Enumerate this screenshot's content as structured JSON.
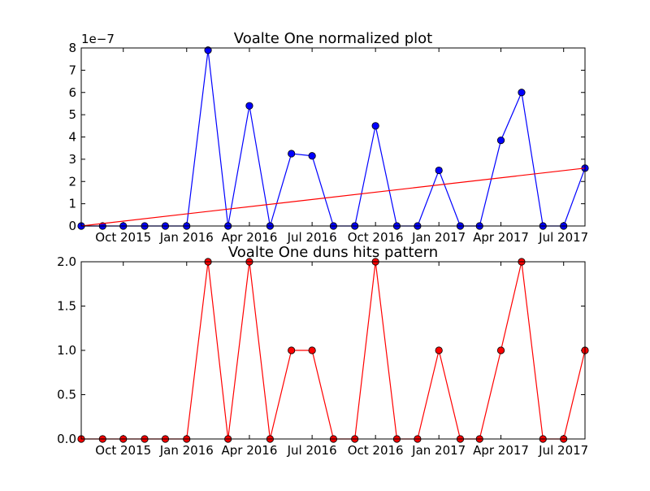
{
  "chart_data": [
    {
      "type": "line",
      "title": "Voalte One normalized plot",
      "xlabel": "",
      "ylabel": "",
      "y_offset_label": "1e−7",
      "y_scale": 1e-07,
      "ylim": [
        0,
        8
      ],
      "yticks": [
        "0",
        "1",
        "2",
        "3",
        "4",
        "5",
        "6",
        "7",
        "8"
      ],
      "xlim": [
        "2015-08-01",
        "2017-08-01"
      ],
      "xticks": [
        {
          "date": "2015-10-01",
          "label": "Oct 2015"
        },
        {
          "date": "2016-01-01",
          "label": "Jan 2016"
        },
        {
          "date": "2016-04-01",
          "label": "Apr 2016"
        },
        {
          "date": "2016-07-01",
          "label": "Jul 2016"
        },
        {
          "date": "2016-10-01",
          "label": "Oct 2016"
        },
        {
          "date": "2017-01-01",
          "label": "Jan 2017"
        },
        {
          "date": "2017-04-01",
          "label": "Apr 2017"
        },
        {
          "date": "2017-07-01",
          "label": "Jul 2017"
        }
      ],
      "series": [
        {
          "kind": "line-markers",
          "color": "#0000ff",
          "marker_color": "#0000ff",
          "x": [
            "2015-08-01",
            "2015-09-01",
            "2015-10-01",
            "2015-11-01",
            "2015-12-01",
            "2016-01-01",
            "2016-02-01",
            "2016-03-01",
            "2016-04-01",
            "2016-05-01",
            "2016-06-01",
            "2016-07-01",
            "2016-08-01",
            "2016-09-01",
            "2016-10-01",
            "2016-11-01",
            "2016-12-01",
            "2017-01-01",
            "2017-02-01",
            "2017-03-01",
            "2017-04-01",
            "2017-05-01",
            "2017-06-01",
            "2017-07-01",
            "2017-08-01"
          ],
          "values": [
            0,
            0,
            0,
            0,
            0,
            0,
            7.9,
            0,
            5.4,
            0,
            3.25,
            3.15,
            0,
            0,
            4.5,
            0,
            0,
            2.5,
            0,
            0,
            3.85,
            6.0,
            0,
            0,
            2.6
          ]
        },
        {
          "kind": "trend-line",
          "color": "#ff0000",
          "x": [
            "2015-08-01",
            "2017-08-01"
          ],
          "values": [
            0,
            2.6
          ]
        }
      ]
    },
    {
      "type": "line",
      "title": "Voalte One duns hits pattern",
      "xlabel": "",
      "ylabel": "",
      "ylim": [
        0,
        2
      ],
      "yticks": [
        "0.0",
        "0.5",
        "1.0",
        "1.5",
        "2.0"
      ],
      "xlim": [
        "2015-08-01",
        "2017-08-01"
      ],
      "xticks": [
        {
          "date": "2015-10-01",
          "label": "Oct 2015"
        },
        {
          "date": "2016-01-01",
          "label": "Jan 2016"
        },
        {
          "date": "2016-04-01",
          "label": "Apr 2016"
        },
        {
          "date": "2016-07-01",
          "label": "Jul 2016"
        },
        {
          "date": "2016-10-01",
          "label": "Oct 2016"
        },
        {
          "date": "2017-01-01",
          "label": "Jan 2017"
        },
        {
          "date": "2017-04-01",
          "label": "Apr 2017"
        },
        {
          "date": "2017-07-01",
          "label": "Jul 2017"
        }
      ],
      "series": [
        {
          "kind": "line-markers",
          "color": "#ff0000",
          "marker_color": "#ff0000",
          "x": [
            "2015-08-01",
            "2015-09-01",
            "2015-10-01",
            "2015-11-01",
            "2015-12-01",
            "2016-01-01",
            "2016-02-01",
            "2016-03-01",
            "2016-04-01",
            "2016-05-01",
            "2016-06-01",
            "2016-07-01",
            "2016-08-01",
            "2016-09-01",
            "2016-10-01",
            "2016-11-01",
            "2016-12-01",
            "2017-01-01",
            "2017-02-01",
            "2017-03-01",
            "2017-04-01",
            "2017-05-01",
            "2017-06-01",
            "2017-07-01",
            "2017-08-01"
          ],
          "values": [
            0,
            0,
            0,
            0,
            0,
            0,
            2,
            0,
            2,
            0,
            1,
            1,
            0,
            0,
            2,
            0,
            0,
            1,
            0,
            0,
            1,
            2,
            0,
            0,
            1
          ]
        }
      ]
    }
  ]
}
